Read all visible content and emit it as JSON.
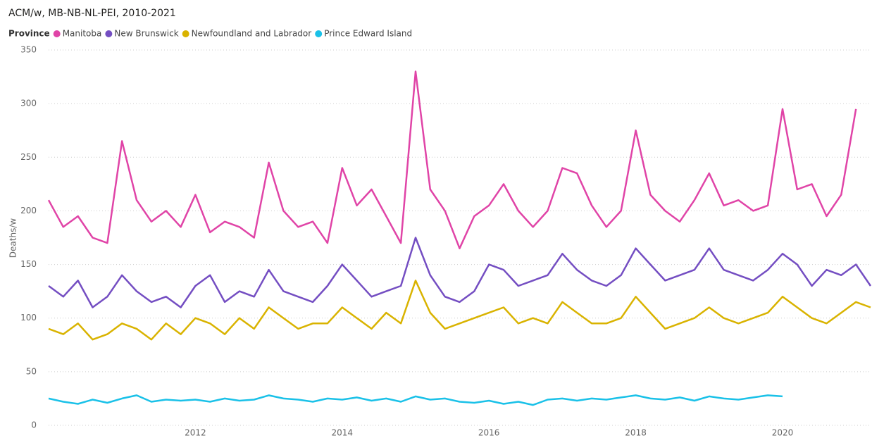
{
  "chart_data": {
    "type": "line",
    "title": "ACM/w, MB-NB-NL-PEI, 2010-2021",
    "legend_title": "Province",
    "y_label": "Deaths/w",
    "x": [
      2010,
      2010.2,
      2010.4,
      2010.6,
      2010.8,
      2011,
      2011.2,
      2011.4,
      2011.6,
      2011.8,
      2012,
      2012.2,
      2012.4,
      2012.6,
      2012.8,
      2013,
      2013.2,
      2013.4,
      2013.6,
      2013.8,
      2014,
      2014.2,
      2014.4,
      2014.6,
      2014.8,
      2015,
      2015.2,
      2015.4,
      2015.6,
      2015.8,
      2016,
      2016.2,
      2016.4,
      2016.6,
      2016.8,
      2017,
      2017.2,
      2017.4,
      2017.6,
      2017.8,
      2018,
      2018.2,
      2018.4,
      2018.6,
      2018.8,
      2019,
      2019.2,
      2019.4,
      2019.6,
      2019.8,
      2020,
      2020.2,
      2020.4,
      2020.6,
      2020.8,
      2021,
      2021.2
    ],
    "series": [
      {
        "name": "Manitoba",
        "color": "#e044a7",
        "values": [
          210,
          185,
          195,
          175,
          170,
          265,
          210,
          190,
          200,
          185,
          215,
          180,
          190,
          185,
          175,
          245,
          200,
          185,
          190,
          170,
          240,
          205,
          220,
          195,
          170,
          330,
          220,
          200,
          165,
          195,
          205,
          225,
          200,
          185,
          200,
          240,
          235,
          205,
          185,
          200,
          275,
          215,
          200,
          190,
          210,
          235,
          205,
          210,
          200,
          205,
          295,
          220,
          225,
          195,
          215,
          295,
          null
        ]
      },
      {
        "name": "New Brunswick",
        "color": "#744ec2",
        "values": [
          130,
          120,
          135,
          110,
          120,
          140,
          125,
          115,
          120,
          110,
          130,
          140,
          115,
          125,
          120,
          145,
          125,
          120,
          115,
          130,
          150,
          135,
          120,
          125,
          130,
          175,
          140,
          120,
          115,
          125,
          150,
          145,
          130,
          135,
          140,
          160,
          145,
          135,
          130,
          140,
          165,
          150,
          135,
          140,
          145,
          165,
          145,
          140,
          135,
          145,
          160,
          150,
          130,
          145,
          140,
          150,
          130
        ]
      },
      {
        "name": "Newfoundland and Labrador",
        "color": "#d9b300",
        "values": [
          90,
          85,
          95,
          80,
          85,
          95,
          90,
          80,
          95,
          85,
          100,
          95,
          85,
          100,
          90,
          110,
          100,
          90,
          95,
          95,
          110,
          100,
          90,
          105,
          95,
          135,
          105,
          90,
          95,
          100,
          105,
          110,
          95,
          100,
          95,
          115,
          105,
          95,
          95,
          100,
          120,
          105,
          90,
          95,
          100,
          110,
          100,
          95,
          100,
          105,
          120,
          110,
          100,
          95,
          105,
          115,
          110
        ]
      },
      {
        "name": "Prince Edward Island",
        "color": "#1ac1e8",
        "values": [
          25,
          22,
          20,
          24,
          21,
          25,
          28,
          22,
          24,
          23,
          24,
          22,
          25,
          23,
          24,
          28,
          25,
          24,
          22,
          25,
          24,
          26,
          23,
          25,
          22,
          27,
          24,
          25,
          22,
          21,
          23,
          20,
          22,
          19,
          24,
          25,
          23,
          25,
          24,
          26,
          28,
          25,
          24,
          26,
          23,
          27,
          25,
          24,
          26,
          28,
          27,
          null,
          null,
          null,
          null,
          null,
          null
        ]
      }
    ],
    "xlim": [
      2010,
      2021.2
    ],
    "xticks": [
      2012,
      2014,
      2016,
      2018,
      2020
    ],
    "ylim": [
      0,
      350
    ],
    "yticks": [
      0,
      50,
      100,
      150,
      200,
      250,
      300,
      350
    ],
    "grid": true
  }
}
